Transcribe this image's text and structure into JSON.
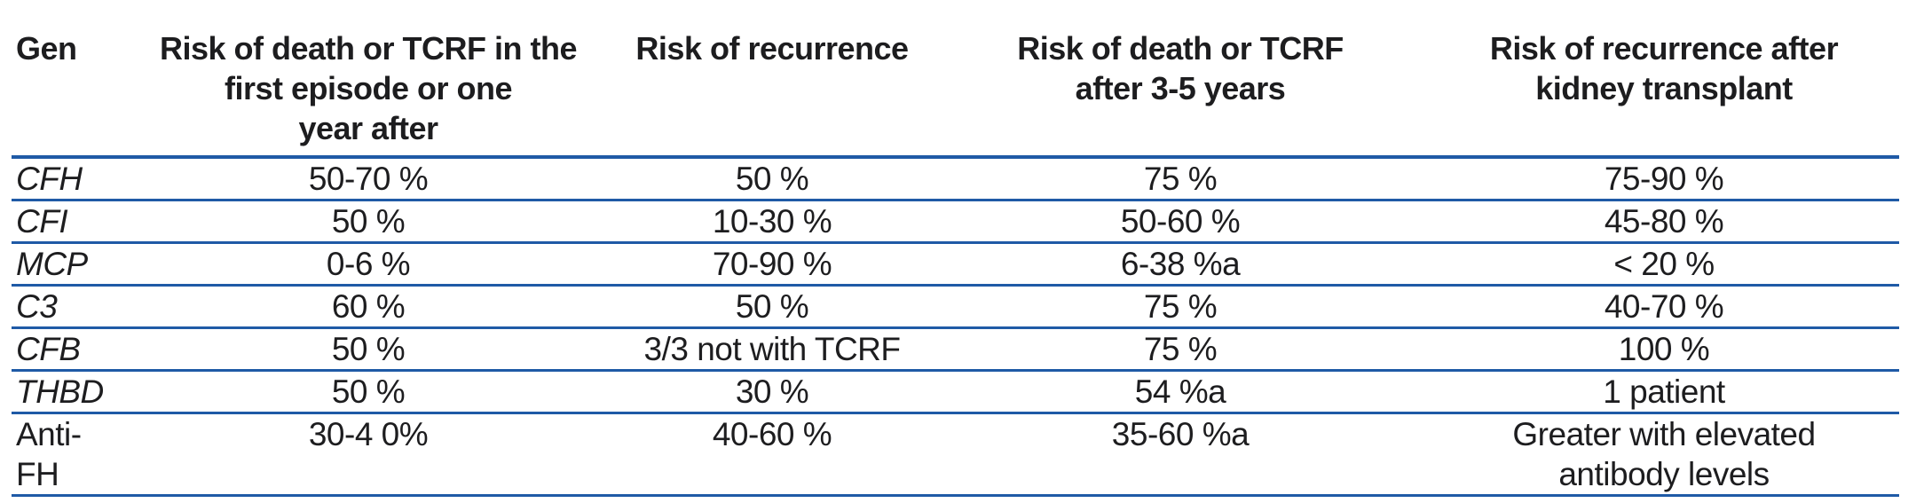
{
  "colors": {
    "rule_blue": "#1f5aa6",
    "text": "#1d1d1f",
    "background": "#ffffff"
  },
  "table": {
    "header": [
      {
        "label": "Gen"
      },
      {
        "label": "Risk of death or TCRF in the\nfirst episode or one\nyear after"
      },
      {
        "label": "Risk of recurrence"
      },
      {
        "label": "Risk of death or TCRF\nafter 3-5 years"
      },
      {
        "label": "Risk of recurrence after\nkidney transplant"
      }
    ],
    "rows": [
      {
        "gene": "CFH",
        "gene_italic": true,
        "values": [
          "50-70 %",
          "50 %",
          "75 %",
          "75-90 %"
        ]
      },
      {
        "gene": "CFI",
        "gene_italic": true,
        "values": [
          "50 %",
          "10-30 %",
          "50-60 %",
          "45-80 %"
        ]
      },
      {
        "gene": "MCP",
        "gene_italic": true,
        "values": [
          "0-6 %",
          "70-90 %",
          "6-38 %a",
          "< 20 %"
        ]
      },
      {
        "gene": "C3",
        "gene_italic": true,
        "values": [
          "60 %",
          "50 %",
          "75 %",
          "40-70 %"
        ]
      },
      {
        "gene": "CFB",
        "gene_italic": true,
        "values": [
          "50 %",
          "3/3 not with TCRF",
          "75 %",
          "100 %"
        ]
      },
      {
        "gene": "THBD",
        "gene_italic": true,
        "values": [
          "50 %",
          "30 %",
          "54 %a",
          "1 patient"
        ]
      },
      {
        "gene": "Anti-FH",
        "gene_italic": false,
        "values": [
          "30-4 0%",
          "40-60 %",
          "35-60 %a",
          "Greater with elevated\nantibody levels"
        ]
      }
    ]
  }
}
